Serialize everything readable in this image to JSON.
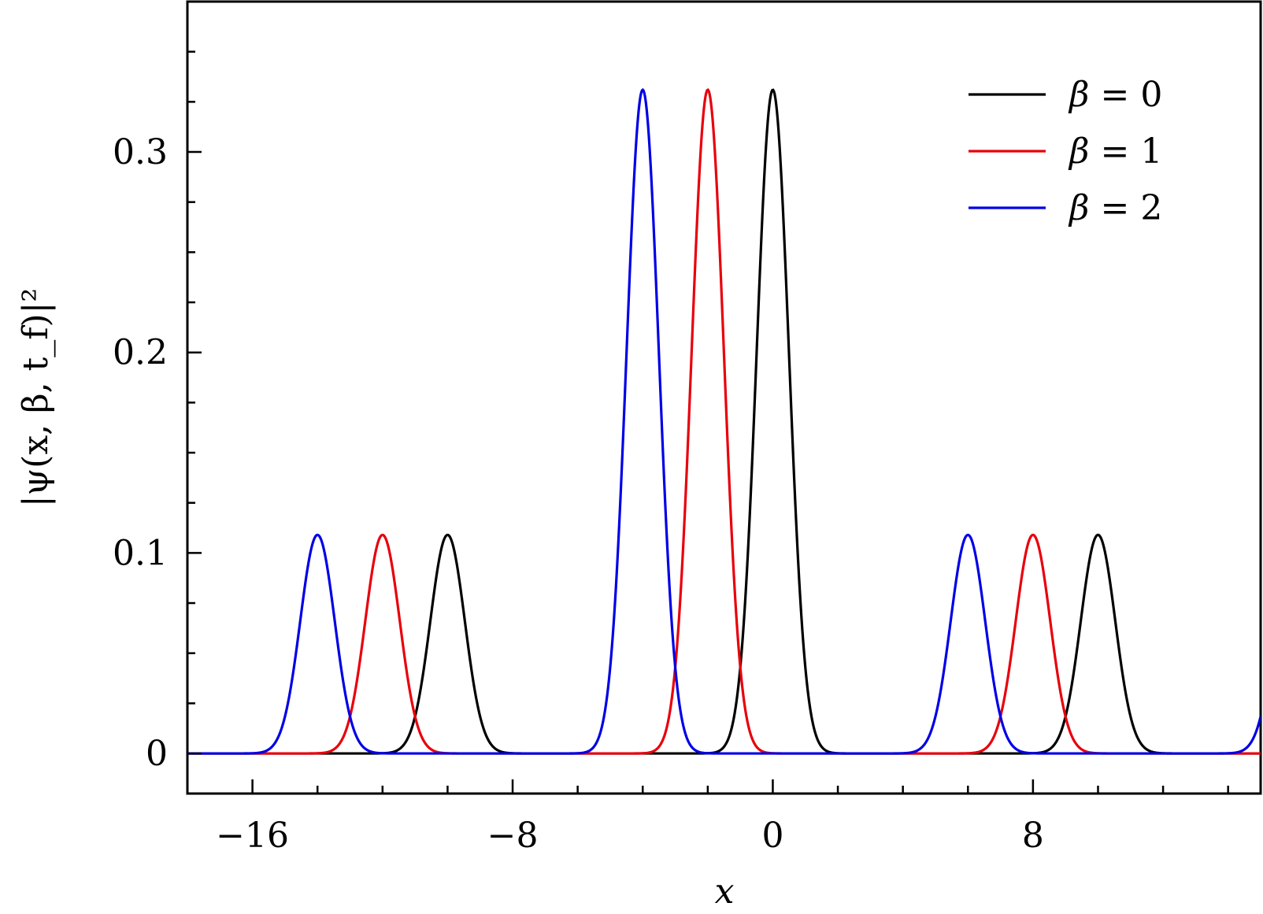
{
  "chart_data": {
    "type": "line",
    "title": "",
    "xlabel": "x",
    "ylabel": "|ψ(x, β, t_f)|²",
    "xlim": [
      -18,
      15
    ],
    "ylim": [
      -0.02,
      0.375
    ],
    "x_ticks_major": [
      -16,
      -8,
      0,
      8
    ],
    "x_tick_labels": [
      "−16",
      "−8",
      "0",
      "8"
    ],
    "x_ticks_minor": [
      -18,
      -14,
      -12,
      -10,
      -6,
      -4,
      -2,
      2,
      4,
      6,
      10,
      12,
      14
    ],
    "y_ticks_major": [
      0,
      0.1,
      0.2,
      0.3
    ],
    "y_tick_labels": [
      "0",
      "0.1",
      "0.2",
      "0.3"
    ],
    "y_ticks_minor": [
      0.025,
      0.05,
      0.075,
      0.125,
      0.15,
      0.175,
      0.225,
      0.25,
      0.275,
      0.325,
      0.35
    ],
    "grid": false,
    "legend_position": "top-right",
    "series": [
      {
        "name": "β = 0",
        "legend_symbol": "β",
        "legend_rel": "=",
        "legend_value": "0",
        "color": "#000000",
        "peaks": [
          {
            "center": -10,
            "height": 0.109,
            "width": 0.75
          },
          {
            "center": 0,
            "height": 0.331,
            "width": 0.7
          },
          {
            "center": 10,
            "height": 0.109,
            "width": 0.75
          }
        ]
      },
      {
        "name": "β = 1",
        "legend_symbol": "β",
        "legend_rel": "=",
        "legend_value": "1",
        "color": "#e8000b",
        "peaks": [
          {
            "center": -12,
            "height": 0.109,
            "width": 0.75
          },
          {
            "center": -2,
            "height": 0.331,
            "width": 0.7
          },
          {
            "center": 8,
            "height": 0.109,
            "width": 0.75
          }
        ]
      },
      {
        "name": "β = 2",
        "legend_symbol": "β",
        "legend_rel": "=",
        "legend_value": "2",
        "color": "#0000e6",
        "peaks": [
          {
            "center": -14,
            "height": 0.109,
            "width": 0.75
          },
          {
            "center": -4,
            "height": 0.331,
            "width": 0.7
          },
          {
            "center": 6,
            "height": 0.109,
            "width": 0.75
          },
          {
            "center": 16,
            "height": 0.109,
            "width": 0.75
          }
        ]
      }
    ]
  }
}
